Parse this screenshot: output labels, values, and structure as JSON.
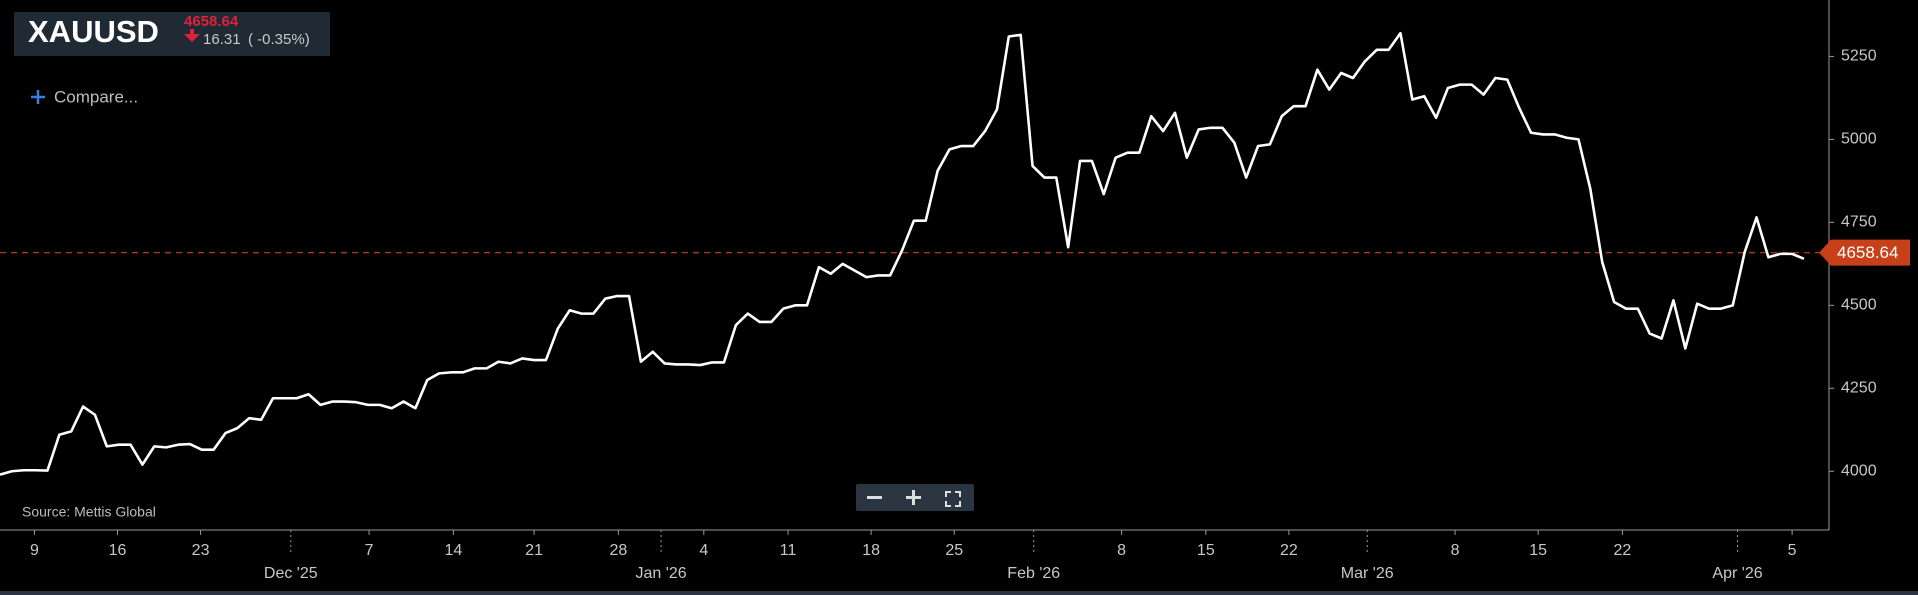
{
  "header": {
    "symbol": "XAUUSD",
    "price_text": "4658.64",
    "change": "16.31",
    "change_pct": "( -0.35%)"
  },
  "compare": "Compare...",
  "source": "Source: Mettis Global",
  "chart_data": {
    "type": "line",
    "series": [
      {
        "name": "XAUUSD",
        "color": "#ffffff",
        "values": [
          3990,
          4000,
          4003,
          4003,
          4002,
          4110,
          4120,
          4195,
          4170,
          4075,
          4080,
          4080,
          4020,
          4075,
          4072,
          4080,
          4082,
          4065,
          4065,
          4115,
          4130,
          4160,
          4155,
          4220,
          4220,
          4220,
          4232,
          4200,
          4210,
          4210,
          4208,
          4200,
          4200,
          4190,
          4210,
          4190,
          4275,
          4295,
          4298,
          4298,
          4310,
          4310,
          4330,
          4325,
          4340,
          4335,
          4335,
          4430,
          4485,
          4475,
          4475,
          4520,
          4528,
          4528,
          4330,
          4360,
          4325,
          4322,
          4322,
          4320,
          4328,
          4328,
          4440,
          4475,
          4450,
          4450,
          4490,
          4500,
          4500,
          4615,
          4595,
          4625,
          4605,
          4585,
          4590,
          4590,
          4665,
          4755,
          4755,
          4905,
          4970,
          4980,
          4980,
          5025,
          5090,
          5310,
          5315,
          4920,
          4885,
          4885,
          4675,
          4935,
          4935,
          4835,
          4945,
          4960,
          4960,
          5070,
          5025,
          5080,
          4945,
          5030,
          5035,
          5035,
          4990,
          4885,
          4980,
          4985,
          5070,
          5100,
          5100,
          5210,
          5150,
          5200,
          5185,
          5235,
          5270,
          5270,
          5320,
          5120,
          5130,
          5065,
          5155,
          5165,
          5165,
          5135,
          5185,
          5180,
          5095,
          5020,
          5015,
          5015,
          5005,
          5000,
          4850,
          4630,
          4510,
          4490,
          4490,
          4415,
          4400,
          4515,
          4370,
          4505,
          4490,
          4490,
          4500,
          4660,
          4765,
          4645,
          4655,
          4655,
          4640
        ]
      }
    ],
    "current_price": 4658.64,
    "current_color": "#c8401a",
    "xlim": [
      0,
      152
    ],
    "xticks": [
      {
        "value": 2.9,
        "label": "9"
      },
      {
        "value": 9.9,
        "label": "16"
      },
      {
        "value": 16.9,
        "label": "23"
      },
      {
        "value": 31.1,
        "label": "7"
      },
      {
        "value": 38.2,
        "label": "14"
      },
      {
        "value": 45.0,
        "label": "21"
      },
      {
        "value": 52.1,
        "label": "28"
      },
      {
        "value": 59.3,
        "label": "4"
      },
      {
        "value": 66.4,
        "label": "11"
      },
      {
        "value": 73.4,
        "label": "18"
      },
      {
        "value": 80.4,
        "label": "25"
      },
      {
        "value": 94.5,
        "label": "8"
      },
      {
        "value": 101.6,
        "label": "15"
      },
      {
        "value": 108.6,
        "label": "22"
      },
      {
        "value": 122.6,
        "label": "8"
      },
      {
        "value": 129.6,
        "label": "15"
      },
      {
        "value": 136.7,
        "label": "22"
      },
      {
        "value": 151.0,
        "label": "5"
      }
    ],
    "month_ticks": [
      {
        "value": 24.5,
        "label": "Dec '25"
      },
      {
        "value": 55.7,
        "label": "Jan '26"
      },
      {
        "value": 87.1,
        "label": "Feb '26"
      },
      {
        "value": 115.2,
        "label": "Mar '26"
      },
      {
        "value": 146.4,
        "label": "Apr '26"
      }
    ],
    "ylim": [
      3823,
      5420
    ],
    "yticks": [
      4000,
      4250,
      4500,
      4750,
      5000,
      5250
    ]
  }
}
